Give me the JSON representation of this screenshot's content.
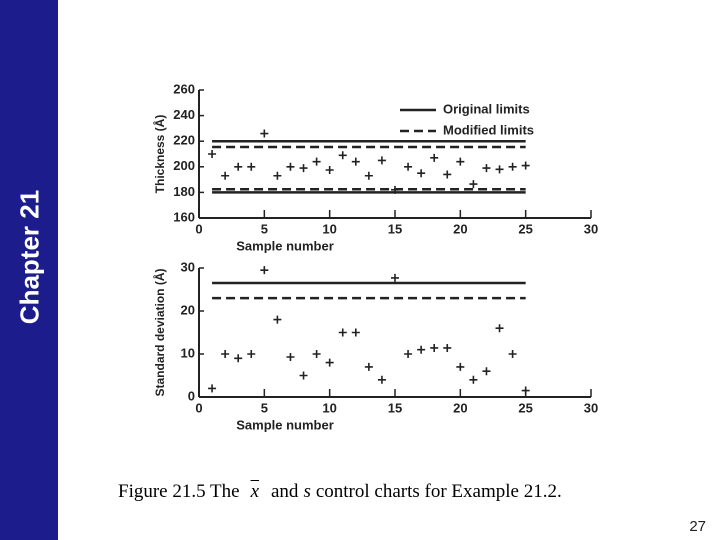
{
  "chapter": "Chapter 21",
  "caption": [
    "Figure 21.5 The",
    "x",
    "and",
    "s",
    "control charts for Example 21.2."
  ],
  "page_number": "27",
  "chart_data": [
    {
      "type": "scatter",
      "x_label": "Sample number",
      "y_label": "Thickness (Å)",
      "x": [
        1,
        2,
        3,
        4,
        5,
        6,
        7,
        8,
        9,
        10,
        11,
        12,
        13,
        14,
        15,
        16,
        17,
        18,
        19,
        20,
        21,
        22,
        23,
        24,
        25
      ],
      "values": [
        210,
        193,
        200,
        200,
        226,
        193,
        200,
        199,
        204,
        197.5,
        209,
        204,
        193,
        205,
        182,
        200,
        195,
        207,
        194,
        204,
        186.5,
        199,
        198,
        200,
        201
      ],
      "xlim": [
        0,
        30
      ],
      "xticks": [
        0,
        5,
        10,
        15,
        20,
        25,
        30
      ],
      "ylim": [
        160,
        260
      ],
      "yticks": [
        160,
        180,
        200,
        220,
        240,
        260
      ],
      "limit_x": [
        1,
        25
      ],
      "limits": [
        {
          "name": "Original limits",
          "style": "solid",
          "values": [
            220,
            180
          ]
        },
        {
          "name": "Modified limits",
          "style": "dashed",
          "values": [
            215.5,
            182.5
          ]
        }
      ],
      "legend": "upper right",
      "grid": false,
      "color": "#222222"
    },
    {
      "type": "scatter",
      "x_label": "Sample number",
      "y_label": "Standard deviation (Å)",
      "x": [
        1,
        2,
        3,
        4,
        5,
        6,
        7,
        8,
        9,
        10,
        11,
        12,
        13,
        14,
        15,
        16,
        17,
        18,
        19,
        20,
        21,
        22,
        23,
        24,
        25
      ],
      "values": [
        2,
        10,
        9,
        10,
        29.5,
        18,
        9.3,
        5,
        10,
        8,
        15,
        15,
        7,
        4,
        27.7,
        10,
        11,
        11.4,
        11.4,
        7,
        4,
        6,
        16,
        10,
        1.5
      ],
      "xlim": [
        0,
        30
      ],
      "xticks": [
        0,
        5,
        10,
        15,
        20,
        25,
        30
      ],
      "ylim": [
        0,
        30
      ],
      "yticks": [
        0,
        10,
        20,
        30
      ],
      "limit_x": [
        1,
        25
      ],
      "limits": [
        {
          "style": "solid",
          "values": [
            26.5
          ]
        },
        {
          "style": "dashed",
          "values": [
            23
          ]
        }
      ],
      "grid": false,
      "color": "#222222"
    }
  ]
}
